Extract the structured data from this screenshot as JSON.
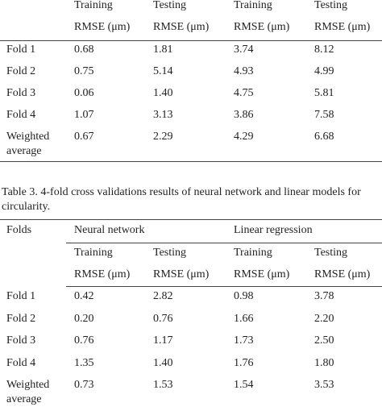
{
  "table1": {
    "header": [
      [
        "Training",
        "Testing",
        "Training",
        "Testing"
      ],
      [
        "RMSE (μm)",
        "RMSE (μm)",
        "RMSE (μm)",
        "RMSE (μm)"
      ]
    ],
    "rows": [
      [
        "Fold 1",
        "0.68",
        "1.81",
        "3.74",
        "8.12"
      ],
      [
        "Fold 2",
        "0.75",
        "5.14",
        "4.93",
        "4.99"
      ],
      [
        "Fold 3",
        "0.06",
        "1.40",
        "4.75",
        "5.81"
      ],
      [
        "Fold 4",
        "1.07",
        "3.13",
        "3.86",
        "7.58"
      ],
      [
        "Weighted average",
        "0.67",
        "2.29",
        "4.29",
        "6.68"
      ]
    ]
  },
  "caption": "Table 3. 4-fold cross validations results of neural network and linear models for circularity.",
  "table2": {
    "columns": [
      "Folds",
      "Neural network",
      "Linear regression"
    ],
    "header": [
      [
        "Training",
        "Testing",
        "Training",
        "Testing"
      ],
      [
        "RMSE (μm)",
        "RMSE (μm)",
        "RMSE (μm)",
        "RMSE (μm)"
      ]
    ],
    "rows": [
      [
        "Fold 1",
        "0.42",
        "2.82",
        "0.98",
        "3.78"
      ],
      [
        "Fold 2",
        "0.20",
        "0.76",
        "1.66",
        "2.20"
      ],
      [
        "Fold 3",
        "0.76",
        "1.17",
        "1.73",
        "2.50"
      ],
      [
        "Fold 4",
        "1.35",
        "1.40",
        "1.76",
        "1.80"
      ],
      [
        "Weighted average",
        "0.73",
        "1.53",
        "1.54",
        "3.53"
      ]
    ]
  }
}
